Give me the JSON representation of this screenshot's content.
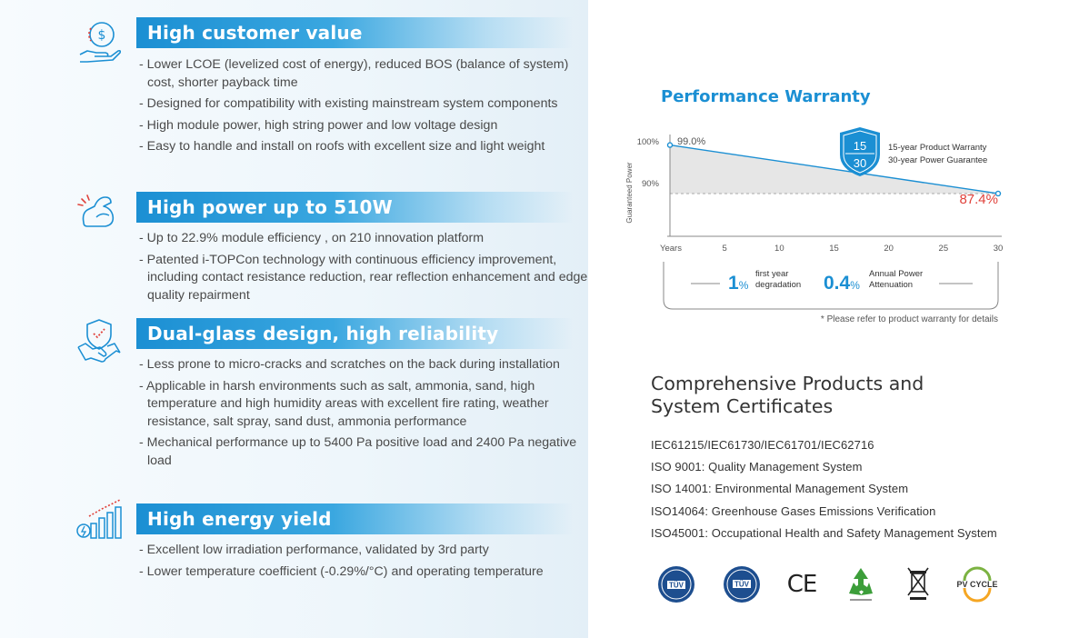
{
  "features": [
    {
      "title": "High customer value",
      "icon": "hand-dollar-icon",
      "items": [
        "Lower LCOE (levelized cost of energy), reduced BOS (balance of system) cost, shorter payback time",
        "Designed for compatibility with existing mainstream system components",
        "High module power, high string power and low voltage design",
        "Easy to handle and install on roofs with excellent size and light weight"
      ]
    },
    {
      "title": "High power up to 510W",
      "icon": "flexed-arm-icon",
      "items": [
        "Up to 22.9% module efficiency , on 210 innovation platform",
        "Patented i-TOPCon technology with continuous efficiency improvement, including contact resistance reduction, rear reflection enhancement and edge quality repairment"
      ]
    },
    {
      "title": "Dual-glass design, high reliability",
      "icon": "handshake-shield-icon",
      "items": [
        "Less prone to micro-cracks and scratches on the back during installation",
        "Applicable in harsh environments such as salt, ammonia, sand, high temperature and high humidity areas with excellent fire rating, weather resistance, salt spray, sand dust, ammonia performance",
        "Mechanical performance up to 5400 Pa positive load and 2400 Pa negative load"
      ]
    },
    {
      "title": "High energy yield",
      "icon": "bar-growth-icon",
      "items": [
        "Excellent low irradiation performance, validated by 3rd party",
        "Lower temperature coefficient (-0.29%/°C) and operating temperature"
      ]
    }
  ],
  "warranty": {
    "title": "Performance Warranty",
    "ylabel": "Guaranteed Power",
    "y_ticks": [
      "100%",
      "90%"
    ],
    "x_ticks": [
      "Years",
      "5",
      "10",
      "15",
      "20",
      "25",
      "30"
    ],
    "start_label": "99.0%",
    "end_label": "87.4%",
    "badge_top": "15",
    "badge_bottom": "30",
    "badge_line1": "15-year Product  Warranty",
    "badge_line2": "30-year Power Guarantee",
    "stat1_value": "1",
    "stat1_unit": "%",
    "stat1_line1": "first year",
    "stat1_line2": "degradation",
    "stat2_value": "0.4",
    "stat2_unit": "%",
    "stat2_line1": "Annual Power",
    "stat2_line2": "Attenuation",
    "note": "* Please refer to product warranty for details",
    "accent": "#1b8fd3",
    "end_color": "#e0413a"
  },
  "chart_data": {
    "type": "area",
    "title": "Performance Warranty",
    "xlabel": "Years",
    "ylabel": "Guaranteed Power",
    "x": [
      0,
      30
    ],
    "y": [
      99.0,
      87.4
    ],
    "xlim": [
      0,
      30
    ],
    "x_ticks": [
      5,
      10,
      15,
      20,
      25,
      30
    ],
    "y_ticks": [
      100,
      90
    ]
  },
  "certs": {
    "title_line1": "Comprehensive Products and",
    "title_line2": "System Certificates",
    "items": [
      "IEC61215/IEC61730/IEC61701/IEC62716",
      "ISO 9001:  Quality Management System",
      "ISO 14001:  Environmental Management System",
      "ISO14064:  Greenhouse Gases Emissions Verification",
      "ISO45001:  Occupational Health and Safety Management System"
    ],
    "logos": [
      "tuv-logo-1",
      "tuv-logo-2",
      "ce-mark",
      "recycle-logo",
      "weee-bin-logo",
      "pv-cycle-logo"
    ],
    "logo_texts": {
      "tuv1": "TÜV",
      "tuv2": "TÜV",
      "ce": "CE",
      "pvcycle": "PV CYCLE"
    }
  }
}
